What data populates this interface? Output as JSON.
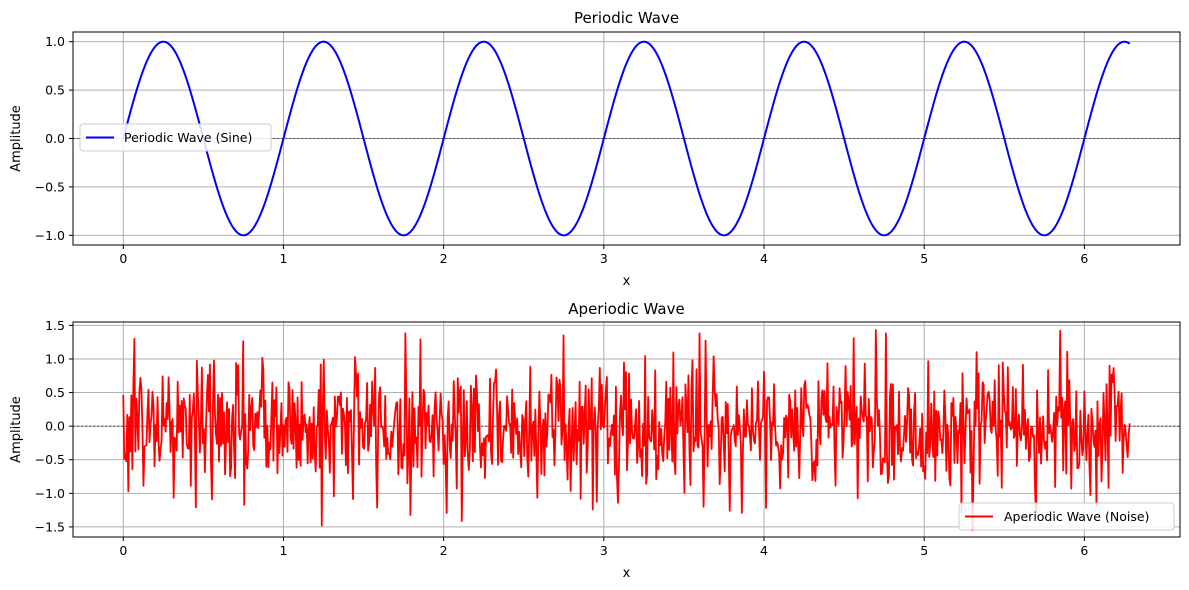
{
  "chart_data": [
    {
      "type": "line",
      "title": "Periodic Wave",
      "xlabel": "x",
      "ylabel": "Amplitude",
      "xlim": [
        -0.314,
        6.597
      ],
      "ylim": [
        -1.1,
        1.1
      ],
      "xticks": [
        0,
        1,
        2,
        3,
        4,
        5,
        6
      ],
      "yticks": [
        -1.0,
        -0.5,
        0.0,
        0.5,
        1.0
      ],
      "ytick_labels": [
        "−1.0",
        "−0.5",
        "0.0",
        "0.5",
        "1.0"
      ],
      "grid": true,
      "zero_line": true,
      "legend_position": "center-left",
      "series": [
        {
          "name": "Periodic Wave (Sine)",
          "color": "#0000ff",
          "function": "sin(2*pi*x)",
          "x_range": [
            0,
            6.283
          ],
          "sample_points": [
            [
              0,
              0
            ],
            [
              0.25,
              1.0
            ],
            [
              0.75,
              -1.0
            ],
            [
              1.0,
              0
            ],
            [
              1.25,
              1.0
            ],
            [
              1.75,
              -1.0
            ],
            [
              2.25,
              1.0
            ],
            [
              2.75,
              -1.0
            ],
            [
              3.25,
              1.0
            ],
            [
              3.75,
              -1.0
            ],
            [
              4.25,
              1.0
            ],
            [
              4.75,
              -1.0
            ],
            [
              5.25,
              1.0
            ],
            [
              5.75,
              -1.0
            ],
            [
              6.25,
              1.0
            ],
            [
              6.283,
              0.98
            ]
          ]
        }
      ]
    },
    {
      "type": "line",
      "title": "Aperiodic Wave",
      "xlabel": "x",
      "ylabel": "Amplitude",
      "xlim": [
        -0.314,
        6.597
      ],
      "ylim": [
        -1.65,
        1.55
      ],
      "xticks": [
        0,
        1,
        2,
        3,
        4,
        5,
        6
      ],
      "yticks": [
        -1.5,
        -1.0,
        -0.5,
        0.0,
        0.5,
        1.0,
        1.5
      ],
      "ytick_labels": [
        "−1.5",
        "−1.0",
        "−0.5",
        "0.0",
        "0.5",
        "1.0",
        "1.5"
      ],
      "grid": true,
      "zero_line": true,
      "legend_position": "lower-right",
      "series": [
        {
          "name": "Aperiodic Wave (Noise)",
          "color": "#ff0000",
          "function": "gaussian noise (std ~0.5)",
          "x_range": [
            0,
            6.283
          ],
          "n_points": 1000,
          "notable_points": [
            [
              0.07,
              1.3
            ],
            [
              1.24,
              -1.48
            ],
            [
              3.6,
              1.38
            ],
            [
              4.7,
              1.43
            ],
            [
              5.85,
              1.42
            ],
            [
              5.3,
              -1.55
            ]
          ]
        }
      ]
    }
  ]
}
